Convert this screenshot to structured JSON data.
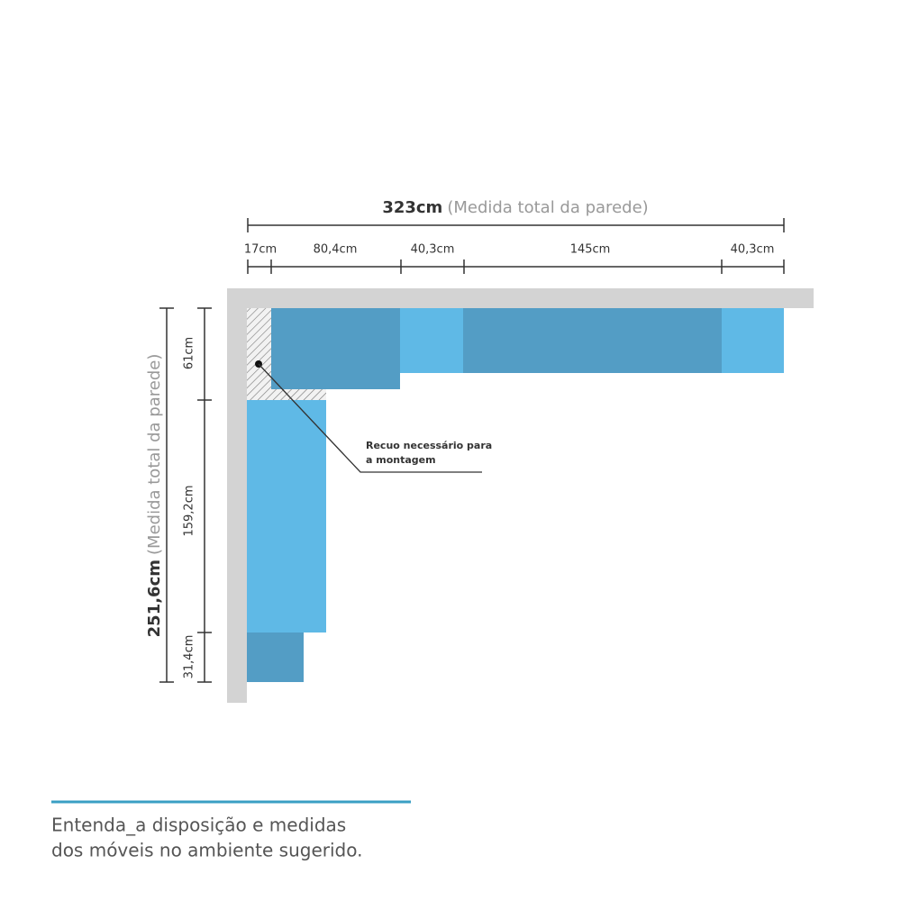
{
  "width_dimension": {
    "total": "323cm",
    "note": "(Medida total da parede)",
    "segments": [
      "17cm",
      "80,4cm",
      "40,3cm",
      "145cm",
      "40,3cm"
    ]
  },
  "height_dimension": {
    "total": "251,6cm",
    "note": "(Medida total da parede)",
    "segments": [
      "61cm",
      "159,2cm",
      "31,4cm"
    ]
  },
  "annotation": {
    "lines": [
      "Recuo necessário para",
      "a montagem"
    ]
  },
  "caption": {
    "lines": [
      "Entenda_a disposição e medidas",
      "dos móveis no ambiente sugerido."
    ]
  }
}
